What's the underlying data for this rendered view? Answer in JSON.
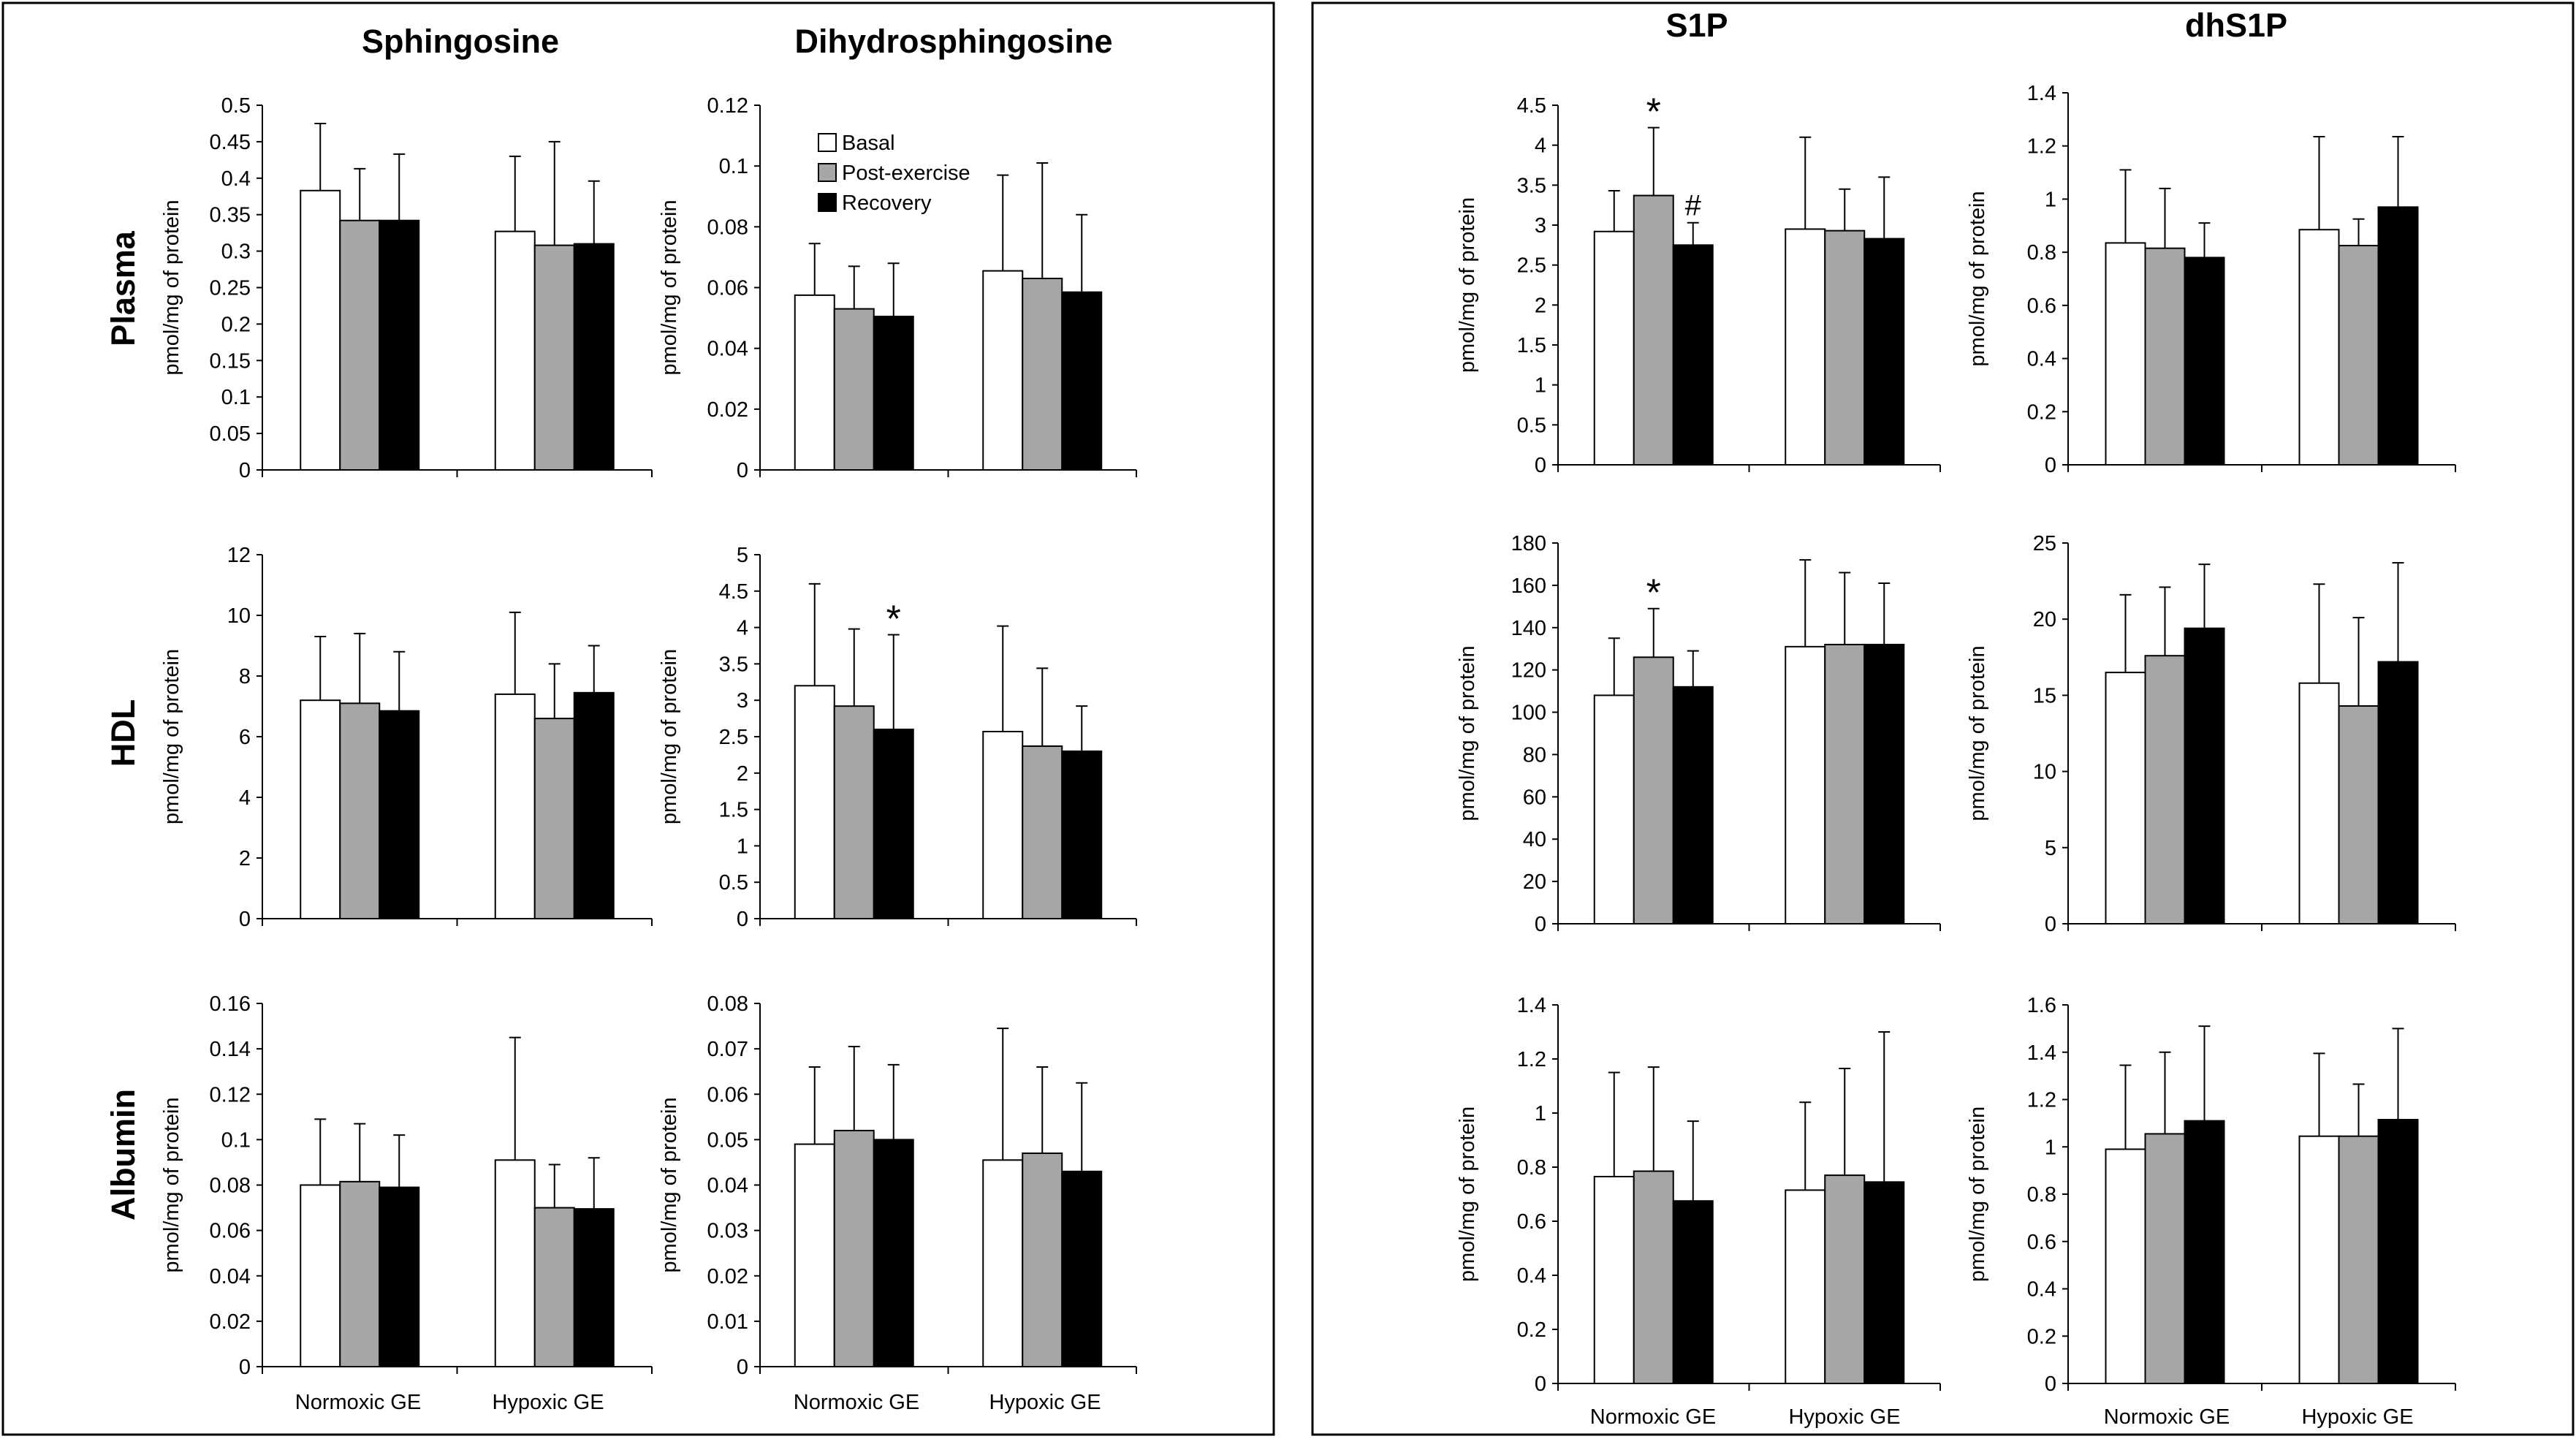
{
  "figure": {
    "panel_groups": [
      {
        "columns": [
          "Sphingosine",
          "Dihydrosphingosine"
        ]
      },
      {
        "columns": [
          "S1P",
          "dhS1P"
        ]
      }
    ],
    "rows": [
      "Plasma",
      "HDL",
      "Albumin"
    ],
    "ylabel": "pmol/mg of protein",
    "categories": [
      "Normoxic GE",
      "Hypoxic GE"
    ],
    "legend": [
      {
        "name": "Basal",
        "color": "#ffffff"
      },
      {
        "name": "Post-exercise",
        "color": "#a6a6a6"
      },
      {
        "name": "Recovery",
        "color": "#000000"
      }
    ]
  },
  "chart_data": [
    {
      "id": "sph-plasma",
      "type": "bar",
      "row": "Plasma",
      "column": "Sphingosine",
      "categories": [
        "Normoxic GE",
        "Hypoxic GE"
      ],
      "ylim": [
        0,
        0.5
      ],
      "ticks": [
        "0",
        "0.05",
        "0.1",
        "0.15",
        "0.2",
        "0.25",
        "0.3",
        "0.35",
        "0.4",
        "0.45",
        "0.5"
      ],
      "ylabel": "pmol/mg of protein",
      "series": [
        {
          "name": "Basal",
          "values": [
            0.383,
            0.327
          ],
          "errors": [
            0.475,
            0.43
          ]
        },
        {
          "name": "Post-exercise",
          "values": [
            0.342,
            0.308
          ],
          "errors": [
            0.413,
            0.45
          ]
        },
        {
          "name": "Recovery",
          "values": [
            0.342,
            0.31
          ],
          "errors": [
            0.433,
            0.396
          ]
        }
      ],
      "annotations": []
    },
    {
      "id": "dhsph-plasma",
      "type": "bar",
      "row": "Plasma",
      "column": "Dihydrosphingosine",
      "categories": [
        "Normoxic GE",
        "Hypoxic GE"
      ],
      "ylim": [
        0,
        0.12
      ],
      "ticks": [
        "0",
        "0.02",
        "0.04",
        "0.06",
        "0.08",
        "0.1",
        "0.12"
      ],
      "ylabel": "pmol/mg of protein",
      "legend": true,
      "series": [
        {
          "name": "Basal",
          "values": [
            0.0575,
            0.0655
          ],
          "errors": [
            0.0745,
            0.097
          ]
        },
        {
          "name": "Post-exercise",
          "values": [
            0.053,
            0.063
          ],
          "errors": [
            0.067,
            0.101
          ]
        },
        {
          "name": "Recovery",
          "values": [
            0.0505,
            0.0585
          ],
          "errors": [
            0.068,
            0.084
          ]
        }
      ],
      "annotations": []
    },
    {
      "id": "sph-hdl",
      "type": "bar",
      "row": "HDL",
      "column": "Sphingosine",
      "categories": [
        "Normoxic GE",
        "Hypoxic GE"
      ],
      "ylim": [
        0,
        12
      ],
      "ticks": [
        "0",
        "2",
        "4",
        "6",
        "8",
        "10",
        "12"
      ],
      "ylabel": "pmol/mg of protein",
      "series": [
        {
          "name": "Basal",
          "values": [
            7.2,
            7.4
          ],
          "errors": [
            9.3,
            10.1
          ]
        },
        {
          "name": "Post-exercise",
          "values": [
            7.1,
            6.6
          ],
          "errors": [
            9.4,
            8.4
          ]
        },
        {
          "name": "Recovery",
          "values": [
            6.85,
            7.45
          ],
          "errors": [
            8.8,
            9.0
          ]
        }
      ],
      "annotations": []
    },
    {
      "id": "dhsph-hdl",
      "type": "bar",
      "row": "HDL",
      "column": "Dihydrosphingosine",
      "categories": [
        "Normoxic GE",
        "Hypoxic GE"
      ],
      "ylim": [
        0,
        5
      ],
      "ticks": [
        "0",
        "0.5",
        "1",
        "1.5",
        "2",
        "2.5",
        "3",
        "3.5",
        "4",
        "4.5",
        "5"
      ],
      "ylabel": "pmol/mg of protein",
      "series": [
        {
          "name": "Basal",
          "values": [
            3.2,
            2.57
          ],
          "errors": [
            4.6,
            4.02
          ]
        },
        {
          "name": "Post-exercise",
          "values": [
            2.92,
            2.37
          ],
          "errors": [
            3.98,
            3.44
          ]
        },
        {
          "name": "Recovery",
          "values": [
            2.6,
            2.3
          ],
          "errors": [
            3.9,
            2.92
          ]
        }
      ],
      "annotations": [
        {
          "text": "*",
          "category": 0,
          "series": 2
        }
      ]
    },
    {
      "id": "sph-albumin",
      "type": "bar",
      "row": "Albumin",
      "column": "Sphingosine",
      "categories": [
        "Normoxic GE",
        "Hypoxic GE"
      ],
      "ylim": [
        0,
        0.16
      ],
      "ticks": [
        "0",
        "0.02",
        "0.04",
        "0.06",
        "0.08",
        "0.1",
        "0.12",
        "0.14",
        "0.16"
      ],
      "ylabel": "pmol/mg of protein",
      "series": [
        {
          "name": "Basal",
          "values": [
            0.08,
            0.091
          ],
          "errors": [
            0.109,
            0.145
          ]
        },
        {
          "name": "Post-exercise",
          "values": [
            0.0815,
            0.07
          ],
          "errors": [
            0.107,
            0.089
          ]
        },
        {
          "name": "Recovery",
          "values": [
            0.079,
            0.0695
          ],
          "errors": [
            0.102,
            0.092
          ]
        }
      ],
      "annotations": []
    },
    {
      "id": "dhsph-albumin",
      "type": "bar",
      "row": "Albumin",
      "column": "Dihydrosphingosine",
      "categories": [
        "Normoxic GE",
        "Hypoxic GE"
      ],
      "ylim": [
        0,
        0.08
      ],
      "ticks": [
        "0",
        "0.01",
        "0.02",
        "0.03",
        "0.04",
        "0.05",
        "0.06",
        "0.07",
        "0.08"
      ],
      "ylabel": "pmol/mg of protein",
      "series": [
        {
          "name": "Basal",
          "values": [
            0.049,
            0.0455
          ],
          "errors": [
            0.066,
            0.0745
          ]
        },
        {
          "name": "Post-exercise",
          "values": [
            0.052,
            0.047
          ],
          "errors": [
            0.0705,
            0.066
          ]
        },
        {
          "name": "Recovery",
          "values": [
            0.05,
            0.043
          ],
          "errors": [
            0.0665,
            0.0625
          ]
        }
      ],
      "annotations": []
    },
    {
      "id": "s1p-plasma",
      "type": "bar",
      "row": "Plasma",
      "column": "S1P",
      "categories": [
        "Normoxic GE",
        "Hypoxic GE"
      ],
      "ylim": [
        0,
        4.5
      ],
      "ticks": [
        "0",
        "0.5",
        "1",
        "1.5",
        "2",
        "2.5",
        "3",
        "3.5",
        "4",
        "4.5"
      ],
      "ylabel": "pmol/mg of protein",
      "series": [
        {
          "name": "Basal",
          "values": [
            2.92,
            2.95
          ],
          "errors": [
            3.43,
            4.1
          ]
        },
        {
          "name": "Post-exercise",
          "values": [
            3.37,
            2.93
          ],
          "errors": [
            4.22,
            3.45
          ]
        },
        {
          "name": "Recovery",
          "values": [
            2.75,
            2.83
          ],
          "errors": [
            3.03,
            3.6
          ]
        }
      ],
      "annotations": [
        {
          "text": "*",
          "category": 0,
          "series": 1
        },
        {
          "text": "#",
          "category": 0,
          "series": 2
        }
      ]
    },
    {
      "id": "dhs1p-plasma",
      "type": "bar",
      "row": "Plasma",
      "column": "dhS1P",
      "categories": [
        "Normoxic GE",
        "Hypoxic GE"
      ],
      "ylim": [
        0,
        1.4
      ],
      "ticks": [
        "0",
        "0.2",
        "0.4",
        "0.6",
        "0.8",
        "1",
        "1.2",
        "1.4"
      ],
      "ylabel": "pmol/mg of protein",
      "series": [
        {
          "name": "Basal",
          "values": [
            0.835,
            0.885
          ],
          "errors": [
            1.11,
            1.235
          ]
        },
        {
          "name": "Post-exercise",
          "values": [
            0.815,
            0.825
          ],
          "errors": [
            1.04,
            0.925
          ]
        },
        {
          "name": "Recovery",
          "values": [
            0.78,
            0.97
          ],
          "errors": [
            0.91,
            1.235
          ]
        }
      ],
      "annotations": []
    },
    {
      "id": "s1p-hdl",
      "type": "bar",
      "row": "HDL",
      "column": "S1P",
      "categories": [
        "Normoxic GE",
        "Hypoxic GE"
      ],
      "ylim": [
        0,
        180
      ],
      "ticks": [
        "0",
        "20",
        "40",
        "60",
        "80",
        "100",
        "120",
        "140",
        "160",
        "180"
      ],
      "ylabel": "pmol/mg of protein",
      "series": [
        {
          "name": "Basal",
          "values": [
            108,
            131
          ],
          "errors": [
            135,
            172
          ]
        },
        {
          "name": "Post-exercise",
          "values": [
            126,
            132
          ],
          "errors": [
            149,
            166
          ]
        },
        {
          "name": "Recovery",
          "values": [
            112,
            132
          ],
          "errors": [
            129,
            161
          ]
        }
      ],
      "annotations": [
        {
          "text": "*",
          "category": 0,
          "series": 1
        }
      ]
    },
    {
      "id": "dhs1p-hdl",
      "type": "bar",
      "row": "HDL",
      "column": "dhS1P",
      "categories": [
        "Normoxic GE",
        "Hypoxic GE"
      ],
      "ylim": [
        0,
        25
      ],
      "ticks": [
        "0",
        "5",
        "10",
        "15",
        "20",
        "25"
      ],
      "ylabel": "pmol/mg of protein",
      "series": [
        {
          "name": "Basal",
          "values": [
            16.5,
            15.8
          ],
          "errors": [
            21.6,
            22.3
          ]
        },
        {
          "name": "Post-exercise",
          "values": [
            17.6,
            14.3
          ],
          "errors": [
            22.1,
            20.1
          ]
        },
        {
          "name": "Recovery",
          "values": [
            19.4,
            17.2
          ],
          "errors": [
            23.6,
            23.7
          ]
        }
      ],
      "annotations": []
    },
    {
      "id": "s1p-albumin",
      "type": "bar",
      "row": "Albumin",
      "column": "S1P",
      "categories": [
        "Normoxic GE",
        "Hypoxic GE"
      ],
      "ylim": [
        0,
        1.4
      ],
      "ticks": [
        "0",
        "0.2",
        "0.4",
        "0.6",
        "0.8",
        "1",
        "1.2",
        "1.4"
      ],
      "ylabel": "pmol/mg of protein",
      "series": [
        {
          "name": "Basal",
          "values": [
            0.765,
            0.715
          ],
          "errors": [
            1.15,
            1.04
          ]
        },
        {
          "name": "Post-exercise",
          "values": [
            0.785,
            0.77
          ],
          "errors": [
            1.17,
            1.165
          ]
        },
        {
          "name": "Recovery",
          "values": [
            0.675,
            0.745
          ],
          "errors": [
            0.97,
            1.3
          ]
        }
      ],
      "annotations": []
    },
    {
      "id": "dhs1p-albumin",
      "type": "bar",
      "row": "Albumin",
      "column": "dhS1P",
      "categories": [
        "Normoxic GE",
        "Hypoxic GE"
      ],
      "ylim": [
        0,
        1.6
      ],
      "ticks": [
        "0",
        "0.2",
        "0.4",
        "0.6",
        "0.8",
        "1",
        "1.2",
        "1.4",
        "1.6"
      ],
      "ylabel": "pmol/mg of protein",
      "series": [
        {
          "name": "Basal",
          "values": [
            0.99,
            1.045
          ],
          "errors": [
            1.345,
            1.395
          ]
        },
        {
          "name": "Post-exercise",
          "values": [
            1.055,
            1.045
          ],
          "errors": [
            1.4,
            1.265
          ]
        },
        {
          "name": "Recovery",
          "values": [
            1.11,
            1.115
          ],
          "errors": [
            1.51,
            1.5
          ]
        }
      ],
      "annotations": []
    }
  ]
}
